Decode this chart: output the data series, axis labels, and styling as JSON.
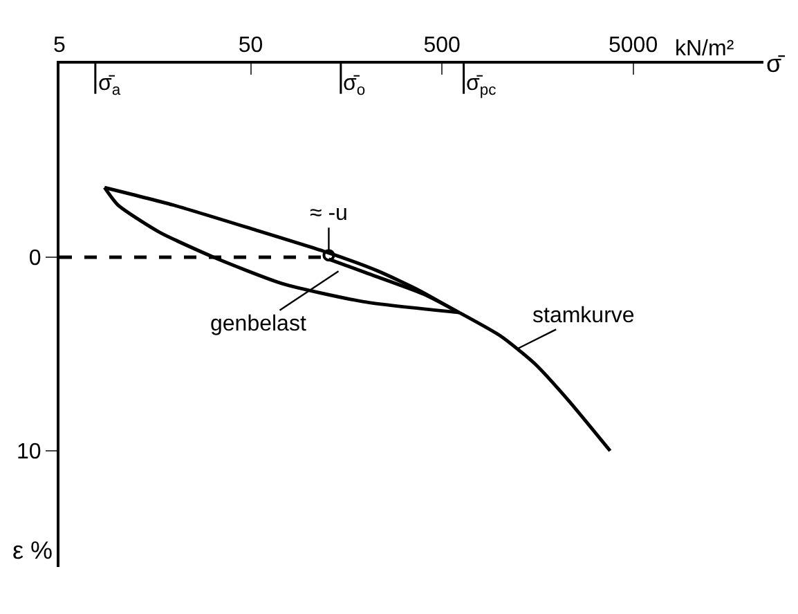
{
  "chart_data": {
    "type": "line",
    "xlabel": "σ̄",
    "ylabel": "ε %",
    "log": "x",
    "xlim": [
      5,
      24000
    ],
    "ylim": [
      16,
      -10
    ],
    "xticks": [
      5,
      50,
      500,
      5000
    ],
    "yticks": [
      0,
      10
    ],
    "marker": "none",
    "tick_labels": "xy",
    "series": [
      {
        "color": "#000000",
        "x": [
          598,
          378,
          231,
          130,
          52,
          19.6,
          8.6
        ],
        "values": [
          2.8,
          1.7,
          0.71,
          -0.2,
          -1.43,
          -2.7,
          -3.6
        ]
      },
      {
        "color": "#000000",
        "x": [
          8.6,
          10.1,
          16.6,
          32,
          73,
          195,
          617
        ],
        "values": [
          -3.6,
          -2.7,
          -1.3,
          0,
          1.36,
          2.3,
          2.86
        ]
      },
      {
        "color": "#000000",
        "x": [
          128,
          200,
          400,
          617
        ],
        "values": [
          0.1,
          0.8,
          1.9,
          2.86
        ]
      },
      {
        "color": "#000000",
        "x": [
          617,
          1014,
          1530,
          2310,
          3790
        ],
        "values": [
          2.86,
          4.07,
          5.5,
          7.43,
          10
        ]
      },
      {
        "color": "#000000",
        "x": [
          5,
          128
        ],
        "values": [
          0,
          0
        ],
        "line_style": "dashed"
      },
      {
        "type": "scatter",
        "color": "#000000",
        "marker": "circle",
        "x": [
          128
        ],
        "values": [
          -0.1
        ]
      }
    ],
    "ref_lines": [
      {
        "axis": "x",
        "value": 7.7,
        "label": "σ̄$_{a}$"
      },
      {
        "axis": "x",
        "value": 148,
        "label": "σ̄$_{o}$"
      },
      {
        "axis": "x",
        "value": 650,
        "label": "σ̄$_{pc}$"
      }
    ],
    "annotations": [
      "kN/m²",
      {
        "text": "≈ -u",
        "x": 128,
        "y": -0.1
      },
      {
        "text": "genbelast",
        "x": 150,
        "y": 0.6
      },
      {
        "text": "stamkurve",
        "x": 1200,
        "y": 4.8
      }
    ]
  }
}
